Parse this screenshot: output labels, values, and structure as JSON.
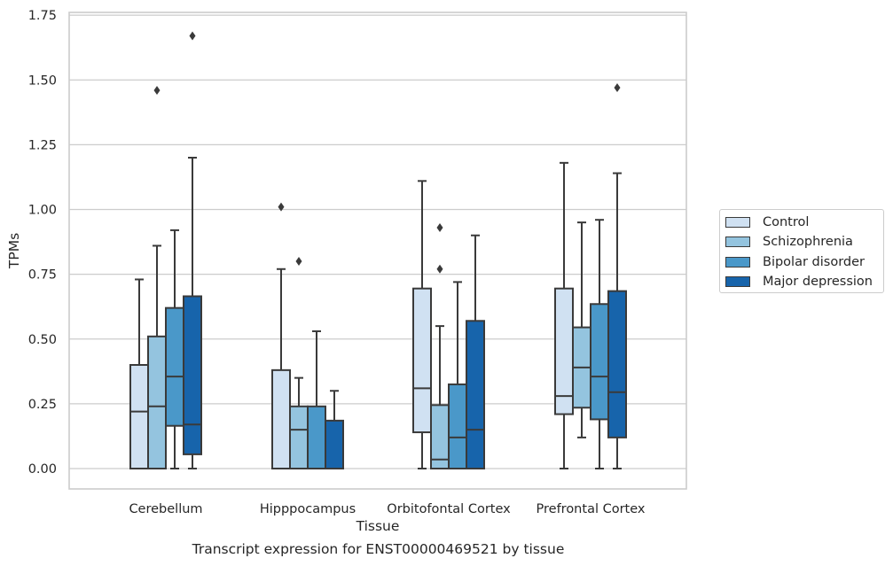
{
  "chart_data": {
    "type": "box",
    "title": "",
    "xlabel": "Tissue",
    "ylabel": "TPMs",
    "caption": "Transcript expression for ENST00000469521 by tissue",
    "ylim": [
      -0.08,
      1.76
    ],
    "yticks": [
      "0.00",
      "0.25",
      "0.50",
      "0.75",
      "1.00",
      "1.25",
      "1.50",
      "1.75"
    ],
    "ytick_values": [
      0,
      0.25,
      0.5,
      0.75,
      1.0,
      1.25,
      1.5,
      1.75
    ],
    "grid": true,
    "legend_position": "right",
    "categories": [
      "Cerebellum",
      "Hipppocampus",
      "Orbitofontal Cortex",
      "Prefrontal Cortex"
    ],
    "series": [
      {
        "name": "Control",
        "color": "#d0e1f2",
        "boxes": [
          {
            "min": 0,
            "q1": 0,
            "median": 0.22,
            "q3": 0.4,
            "max": 0.73,
            "outliers": []
          },
          {
            "min": 0,
            "q1": 0,
            "median": 0,
            "q3": 0.38,
            "max": 0.77,
            "outliers": [
              1.01
            ]
          },
          {
            "min": 0,
            "q1": 0.14,
            "median": 0.31,
            "q3": 0.695,
            "max": 1.11,
            "outliers": []
          },
          {
            "min": 0,
            "q1": 0.21,
            "median": 0.28,
            "q3": 0.695,
            "max": 1.18,
            "outliers": []
          }
        ]
      },
      {
        "name": "Schizophrenia",
        "color": "#94c4df",
        "boxes": [
          {
            "min": 0,
            "q1": 0,
            "median": 0.24,
            "q3": 0.51,
            "max": 0.86,
            "outliers": [
              1.46
            ]
          },
          {
            "min": 0,
            "q1": 0,
            "median": 0.15,
            "q3": 0.24,
            "max": 0.35,
            "outliers": [
              0.8
            ]
          },
          {
            "min": 0,
            "q1": 0,
            "median": 0.035,
            "q3": 0.245,
            "max": 0.55,
            "outliers": [
              0.77,
              0.93
            ]
          },
          {
            "min": 0.12,
            "q1": 0.235,
            "median": 0.39,
            "q3": 0.545,
            "max": 0.95,
            "outliers": []
          }
        ]
      },
      {
        "name": "Bipolar disorder",
        "color": "#4a98c9",
        "boxes": [
          {
            "min": 0,
            "q1": 0.165,
            "median": 0.355,
            "q3": 0.62,
            "max": 0.92,
            "outliers": []
          },
          {
            "min": 0,
            "q1": 0,
            "median": 0,
            "q3": 0.24,
            "max": 0.53,
            "outliers": []
          },
          {
            "min": 0,
            "q1": 0,
            "median": 0.12,
            "q3": 0.325,
            "max": 0.72,
            "outliers": []
          },
          {
            "min": 0,
            "q1": 0.19,
            "median": 0.355,
            "q3": 0.635,
            "max": 0.96,
            "outliers": []
          }
        ]
      },
      {
        "name": "Major depression",
        "color": "#1764ab",
        "boxes": [
          {
            "min": 0,
            "q1": 0.055,
            "median": 0.17,
            "q3": 0.665,
            "max": 1.2,
            "outliers": [
              1.67
            ]
          },
          {
            "min": 0,
            "q1": 0,
            "median": 0,
            "q3": 0.185,
            "max": 0.3,
            "outliers": []
          },
          {
            "min": 0,
            "q1": 0,
            "median": 0.15,
            "q3": 0.57,
            "max": 0.9,
            "outliers": []
          },
          {
            "min": 0,
            "q1": 0.12,
            "median": 0.295,
            "q3": 0.685,
            "max": 1.14,
            "outliers": [
              1.47
            ]
          }
        ]
      }
    ]
  }
}
